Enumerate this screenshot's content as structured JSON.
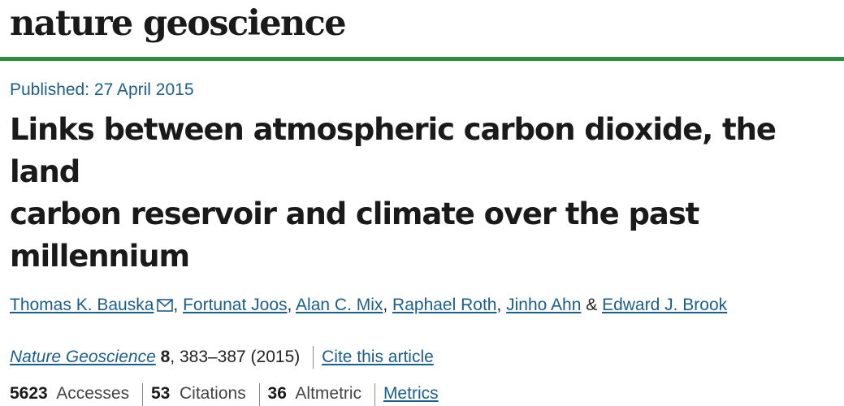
{
  "header": {
    "logo_text": "nature geoscience",
    "accent_color": "#2e8b45"
  },
  "article": {
    "published": "Published: 27 April 2015",
    "title_line1": "Links between atmospheric carbon dioxide, the land",
    "title_line2": "carbon reservoir and climate over the past millennium",
    "authors": [
      "Thomas K. Bauska",
      "Fortunat Joos",
      "Alan C. Mix",
      "Raphael Roth",
      "Jinho Ahn",
      "Edward J. Brook"
    ],
    "author_separator": ", ",
    "author_last_separator": " & ",
    "mail_icon": "envelope-icon",
    "journal": {
      "name": "Nature Geoscience",
      "volume": "8",
      "pages": ", 383–387 (2015)",
      "cite_label": "Cite this article"
    },
    "metrics": {
      "accesses_value": "5623",
      "accesses_label": "Accesses",
      "citations_value": "53",
      "citations_label": "Citations",
      "altmetric_value": "36",
      "altmetric_label": "Altmetric",
      "metrics_label": "Metrics"
    }
  }
}
